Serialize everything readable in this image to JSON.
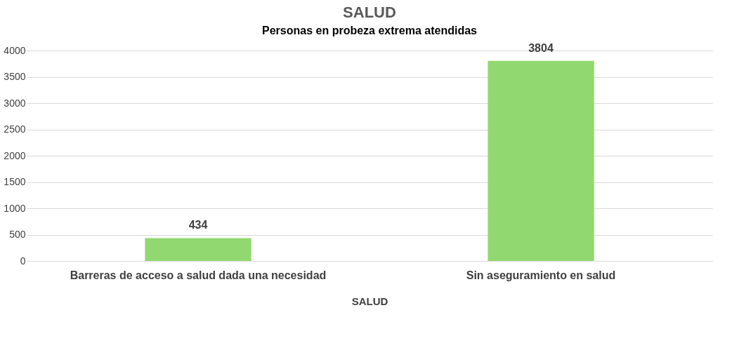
{
  "chart_data": {
    "type": "bar",
    "title": "SALUD",
    "subtitle": "Personas en probeza extrema atendidas",
    "xlabel": "SALUD",
    "categories": [
      "Barreras de acceso a salud dada una necesidad",
      "Sin aseguramiento en salud"
    ],
    "values": [
      434,
      3804
    ],
    "color": "#92d870",
    "ylim": [
      0,
      4000
    ],
    "yticks": [
      0,
      500,
      1000,
      1500,
      2000,
      2500,
      3000,
      3500,
      4000
    ],
    "grid": "y",
    "data_labels": true
  }
}
